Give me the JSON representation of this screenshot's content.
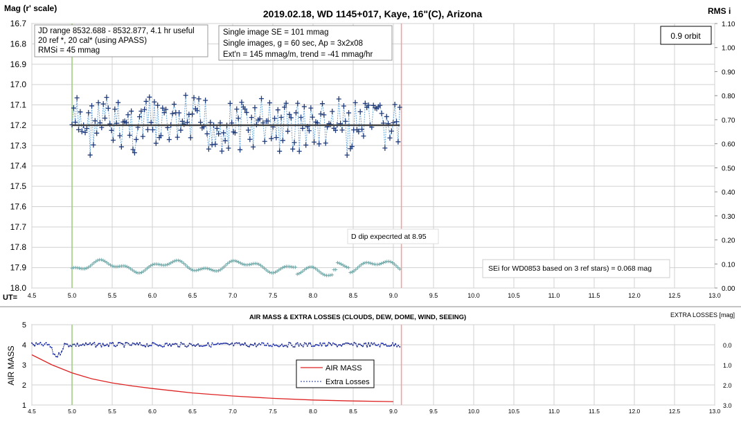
{
  "chart_data": [
    {
      "type": "scatter",
      "title": "2019.02.18, WD 1145+017, Kaye, 16\"(C), Arizona",
      "ylabel_left": "Mag (r' scale)",
      "ylabel_right": "RMS i",
      "xlabel": "UT=",
      "xlim": [
        4.5,
        13.0
      ],
      "ylim_left": [
        16.7,
        18.0
      ],
      "ylim_right": [
        0.0,
        1.1
      ],
      "x_ticks": [
        "4.5",
        "5.0",
        "5.5",
        "6.0",
        "6.5",
        "7.0",
        "7.5",
        "8.0",
        "8.5",
        "9.0",
        "9.5",
        "10.0",
        "10.5",
        "11.0",
        "11.5",
        "12.0",
        "12.5",
        "13.0"
      ],
      "y_left_ticks": [
        "16.7",
        "16.8",
        "16.9",
        "17.0",
        "17.1",
        "17.2",
        "17.3",
        "17.4",
        "17.5",
        "17.6",
        "17.7",
        "17.8",
        "17.9",
        "18.0"
      ],
      "y_right_ticks": [
        "1.10",
        "1.00",
        "0.90",
        "0.80",
        "0.70",
        "0.60",
        "0.50",
        "0.40",
        "0.30",
        "0.20",
        "0.10",
        "0.00"
      ],
      "grid": true,
      "info_box_1": [
        "JD range 8532.688 - 8532.877, 4.1 hr useful",
        "20 ref *, 20 cal* (using APASS)",
        "RMSi = 45 mmag"
      ],
      "info_box_2": [
        "Single image SE = 101 mmag",
        "Single images, g = 60 sec, Ap = 3x2x08",
        "Ext'n = 145 mmag/m, trend = -41 mmag/hr"
      ],
      "orbit_label": "0.9 orbit",
      "dip_label": "D dip expecrted at 8.95",
      "sei_label": "SEi for WD0853 based on 3 ref stars) = 0.068 mag",
      "start_marker_x": 5.0,
      "end_marker_x": 9.1,
      "mean_mag": 17.2,
      "mag_range": [
        5.0,
        9.08
      ],
      "mag_scatter_rms": 0.1,
      "rms_range": [
        5.0,
        9.08
      ],
      "rms_level_approx": 0.09,
      "colors": {
        "mag": "#1f3a7a",
        "mag_line": "#6aa5d8",
        "mean": "#444444",
        "rms": "#6fa8a8",
        "start": "#99cc77",
        "end": "#ff9999"
      }
    },
    {
      "type": "line",
      "title": "AIR MASS & EXTRA LOSSES (CLOUDS, DEW, DOME, WIND, SEEING)",
      "ylabel_left": "AIR MASS",
      "ylabel_right": "EXTRA LOSSES [mag]",
      "xlim": [
        4.5,
        13.0
      ],
      "ylim_left": [
        1,
        5
      ],
      "ylim_right_top": -1.0,
      "ylim_right_bottom": 3.0,
      "x_ticks": [
        "4.5",
        "5.0",
        "5.5",
        "6.0",
        "6.5",
        "7.0",
        "7.5",
        "8.0",
        "8.5",
        "9.0",
        "9.5",
        "10.0",
        "10.5",
        "11.0",
        "11.5",
        "12.0",
        "12.5",
        "13.0"
      ],
      "y_left_ticks": [
        "5",
        "4",
        "3",
        "2",
        "1"
      ],
      "y_right_ticks": [
        "0.0",
        "1.0",
        "2.0",
        "3.0"
      ],
      "legend": [
        "AIR MASS",
        "Extra Losses"
      ],
      "series": [
        {
          "name": "AIR MASS",
          "x": [
            4.5,
            4.75,
            5.0,
            5.25,
            5.5,
            5.75,
            6.0,
            6.5,
            7.0,
            7.5,
            8.0,
            8.5,
            9.0
          ],
          "values": [
            3.5,
            3.0,
            2.6,
            2.3,
            2.1,
            1.95,
            1.82,
            1.6,
            1.45,
            1.33,
            1.25,
            1.2,
            1.17
          ]
        },
        {
          "name": "Extra Losses",
          "x": [
            4.5,
            4.7,
            4.8,
            4.9,
            5.0,
            5.5,
            6.0,
            6.5,
            7.0,
            7.5,
            8.0,
            8.5,
            9.0
          ],
          "values": [
            0.0,
            0.0,
            0.6,
            0.2,
            0.0,
            0.05,
            0.0,
            0.05,
            0.0,
            0.0,
            0.05,
            0.0,
            0.05
          ]
        }
      ],
      "colors": {
        "air_mass": "#dd2222",
        "extra_losses": "#1a2a9a"
      }
    }
  ]
}
